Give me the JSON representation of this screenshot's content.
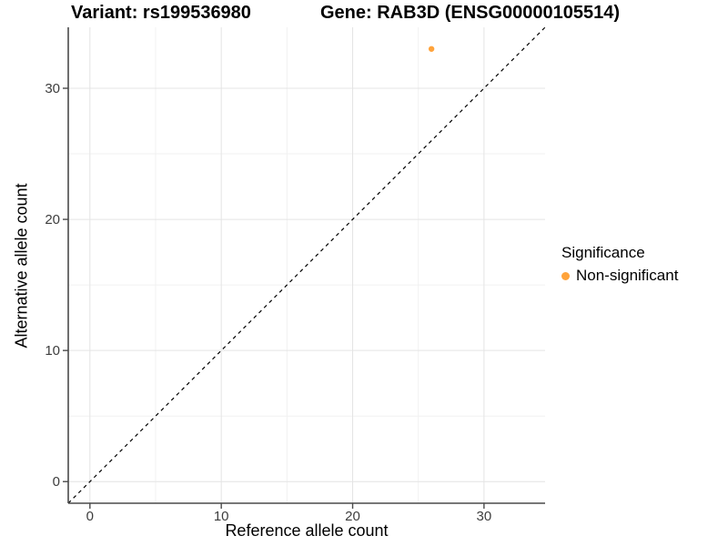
{
  "title": {
    "variant": "Variant: rs199536980",
    "gene": "Gene: RAB3D (ENSG00000105514)"
  },
  "legend": {
    "title": "Significance",
    "items": [
      {
        "label": "Non-significant",
        "color": "#FFA33B"
      }
    ]
  },
  "chart_data": {
    "type": "scatter",
    "title": "Variant: rs199536980   Gene: RAB3D (ENSG00000105514)",
    "x_label": "Reference allele count",
    "y_label": "Alternative allele count",
    "xlim": [
      0,
      33
    ],
    "ylim": [
      0,
      33
    ],
    "expansion": 0.05,
    "x_major_ticks": [
      0,
      10,
      20,
      30
    ],
    "y_major_ticks": [
      0,
      10,
      20,
      30
    ],
    "x_minor_gridlines": [
      5,
      15,
      25
    ],
    "y_minor_gridlines": [
      5,
      15,
      25
    ],
    "grid": {
      "major_color": "#E4E4E4",
      "minor_color": "#F1F1F1"
    },
    "axis_color": "#4a4a4a",
    "tick_label_color": "#3d3d3d",
    "identity_line": {
      "slope": 1,
      "intercept": 0,
      "style": "dashed",
      "color": "#000000"
    },
    "series": [
      {
        "name": "Non-significant",
        "color": "#FFA33B",
        "points": [
          {
            "x": 26,
            "y": 33
          }
        ]
      }
    ],
    "legend_position": "right",
    "grid_on": true
  }
}
